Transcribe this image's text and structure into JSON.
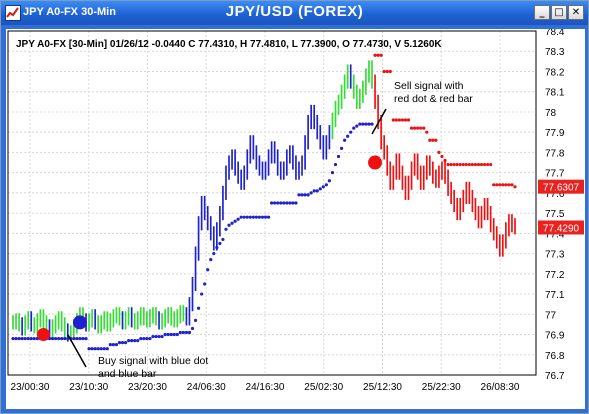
{
  "window": {
    "title": "JPY A0-FX 30-Min",
    "chart_title": "JPY/USD (FOREX)",
    "controls": {
      "minimize": "_",
      "restore": "□",
      "close": "✕"
    }
  },
  "chart_data": {
    "type": "bar",
    "info": "JPY A0-FX [30-Min] 01/26/12  -0.0440 C 77.4310, H 77.4810, L 77.3900, O 77.4730, V 5.1260K",
    "x_ticks": [
      "23/00:30",
      "23/10:30",
      "23/20:30",
      "24/06:30",
      "24/16:30",
      "25/02:30",
      "25/12:30",
      "25/22:30",
      "26/08:30"
    ],
    "y_ticks": [
      "78.4",
      "78.3",
      "78.2",
      "78.1",
      "78",
      "77.9",
      "77.8",
      "77.7",
      "77.6",
      "77.5",
      "77.4",
      "77.3",
      "77.2",
      "77.1",
      "77",
      "76.9",
      "76.8",
      "76.7"
    ],
    "ylim": [
      76.7,
      78.4
    ],
    "price_tags": [
      {
        "value": 77.6307,
        "label": "77.6307"
      },
      {
        "value": 77.429,
        "label": "77.4290"
      }
    ],
    "annotations": {
      "buy": "Buy signal with blue dot\nand blue bar",
      "sell": "Sell signal with\nred dot & red bar"
    },
    "colors": {
      "up": "#33dd33",
      "blue": "#1e22cc",
      "red": "#ee1111",
      "grid": "#d8d8d8"
    },
    "series_close": [
      76.96,
      76.97,
      76.95,
      76.93,
      76.96,
      76.98,
      76.95,
      76.94,
      76.97,
      76.99,
      76.96,
      76.94,
      76.92,
      76.94,
      76.96,
      76.98,
      76.95,
      76.92,
      76.9,
      76.91,
      76.94,
      76.97,
      77.0,
      76.97,
      76.95,
      76.97,
      76.99,
      76.96,
      76.94,
      76.96,
      76.98,
      76.95,
      76.97,
      76.99,
      77.0,
      76.98,
      76.96,
      76.98,
      77.0,
      76.97,
      76.96,
      76.98,
      77.0,
      76.98,
      76.97,
      76.99,
      77.0,
      76.98,
      76.96,
      76.97,
      76.99,
      77.0,
      76.98,
      76.97,
      76.99,
      77.01,
      77.0,
      76.98,
      77.05,
      77.15,
      77.3,
      77.45,
      77.55,
      77.5,
      77.45,
      77.4,
      77.35,
      77.42,
      77.5,
      77.6,
      77.7,
      77.75,
      77.78,
      77.72,
      77.68,
      77.65,
      77.7,
      77.78,
      77.85,
      77.8,
      77.75,
      77.72,
      77.7,
      77.72,
      77.78,
      77.82,
      77.78,
      77.72,
      77.7,
      77.72,
      77.78,
      77.8,
      77.75,
      77.7,
      77.72,
      77.75,
      77.85,
      77.95,
      78.0,
      77.95,
      77.9,
      77.85,
      77.8,
      77.85,
      77.9,
      77.96,
      78.02,
      78.05,
      78.1,
      78.15,
      78.2,
      78.15,
      78.1,
      78.05,
      78.08,
      78.12,
      78.18,
      78.22,
      78.15,
      78.05,
      77.95,
      77.85,
      77.8,
      77.72,
      77.65,
      77.7,
      77.76,
      77.7,
      77.65,
      77.6,
      77.65,
      77.72,
      77.76,
      77.7,
      77.65,
      77.7,
      77.75,
      77.72,
      77.68,
      77.66,
      77.7,
      77.72,
      77.68,
      77.62,
      77.58,
      77.54,
      77.5,
      77.54,
      77.58,
      77.62,
      77.58,
      77.54,
      77.5,
      77.46,
      77.5,
      77.54,
      77.5,
      77.44,
      77.4,
      77.36,
      77.32,
      77.36,
      77.42,
      77.46,
      77.44,
      77.43
    ],
    "series_stop": [
      76.88,
      76.88,
      76.88,
      76.88,
      76.88,
      76.88,
      76.88,
      76.88,
      76.88,
      76.88,
      76.88,
      76.88,
      76.88,
      76.88,
      76.88,
      76.88,
      76.88,
      76.88,
      76.88,
      76.88,
      76.88,
      76.88,
      76.88,
      76.88,
      76.88,
      76.83,
      76.83,
      76.83,
      76.83,
      76.83,
      76.83,
      76.83,
      76.85,
      76.85,
      76.85,
      76.86,
      76.86,
      76.86,
      76.87,
      76.87,
      76.87,
      76.87,
      76.88,
      76.88,
      76.88,
      76.88,
      76.89,
      76.89,
      76.89,
      76.89,
      76.9,
      76.9,
      76.9,
      76.9,
      76.9,
      76.91,
      76.91,
      76.91,
      76.91,
      76.93,
      76.97,
      77.03,
      77.1,
      77.15,
      77.22,
      77.27,
      77.3,
      77.33,
      77.35,
      77.37,
      77.42,
      77.44,
      77.45,
      77.46,
      77.47,
      77.48,
      77.48,
      77.48,
      77.48,
      77.48,
      77.48,
      77.48,
      77.48,
      77.48,
      77.48,
      77.55,
      77.55,
      77.55,
      77.55,
      77.55,
      77.55,
      77.55,
      77.55,
      77.55,
      77.59,
      77.59,
      77.59,
      77.59,
      77.6,
      77.61,
      77.61,
      77.62,
      77.63,
      77.64,
      77.66,
      77.7,
      77.74,
      77.78,
      77.82,
      77.86,
      77.88,
      77.9,
      77.92,
      77.93,
      77.94,
      77.94,
      77.94,
      77.94,
      77.94,
      78.28,
      78.28,
      78.28,
      78.2,
      78.2,
      78.2,
      77.96,
      77.96,
      77.96,
      77.96,
      77.96,
      77.96,
      77.92,
      77.92,
      77.92,
      77.92,
      77.92,
      77.9,
      77.86,
      77.86,
      77.86,
      77.8,
      77.78,
      77.76,
      77.74,
      77.74,
      77.74,
      77.74,
      77.74,
      77.74,
      77.74,
      77.74,
      77.74,
      77.74,
      77.74,
      77.74,
      77.74,
      77.74,
      77.74,
      77.64,
      77.64,
      77.64,
      77.64,
      77.64,
      77.64,
      77.64,
      77.63
    ],
    "signals": [
      {
        "type": "buy",
        "index": 22,
        "value": 76.96
      },
      {
        "type": "sell",
        "index": 119,
        "value": 77.75
      }
    ]
  }
}
